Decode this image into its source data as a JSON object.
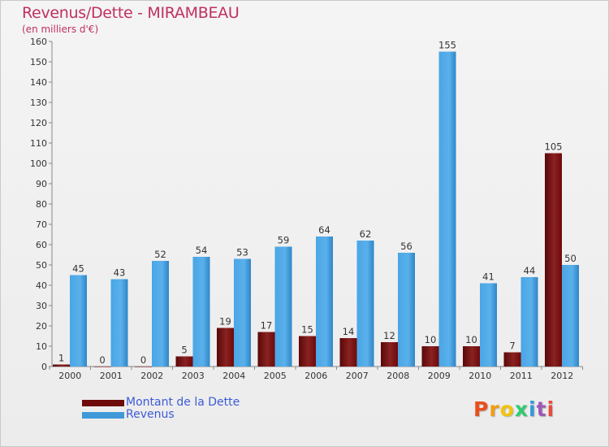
{
  "title": "Revenus/Dette - MIRAMBEAU",
  "subtitle": "(en milliers d'€)",
  "legend": {
    "dette": "Montant de la Dette",
    "revenus": "Revenus"
  },
  "logo": {
    "text": "Proxiti",
    "letters": [
      "P",
      "r",
      "o",
      "x",
      "i",
      "t",
      "i"
    ],
    "colors": [
      "#e94e1b",
      "#f39c12",
      "#f1c40f",
      "#2ecc71",
      "#3498db",
      "#9b59b6",
      "#e74c3c"
    ]
  },
  "colors": {
    "dette": "#6e0a0a",
    "revenus": "#3f98d8",
    "title": "#c03060"
  },
  "chart_data": {
    "type": "bar",
    "title": "Revenus/Dette - MIRAMBEAU",
    "subtitle": "(en milliers d'€)",
    "categories": [
      "2000",
      "2001",
      "2002",
      "2003",
      "2004",
      "2005",
      "2006",
      "2007",
      "2008",
      "2009",
      "2010",
      "2011",
      "2012"
    ],
    "series": [
      {
        "name": "Montant de la Dette",
        "values": [
          1,
          0,
          0,
          5,
          19,
          17,
          15,
          14,
          12,
          10,
          10,
          7,
          105
        ]
      },
      {
        "name": "Revenus",
        "values": [
          45,
          43,
          52,
          54,
          53,
          59,
          64,
          62,
          56,
          155,
          41,
          44,
          50
        ]
      }
    ],
    "ylim": [
      0,
      160
    ],
    "yticks": [
      0,
      10,
      20,
      30,
      40,
      50,
      60,
      70,
      80,
      90,
      100,
      110,
      120,
      130,
      140,
      150,
      160
    ],
    "grid": false,
    "legend_position": "bottom-left"
  }
}
